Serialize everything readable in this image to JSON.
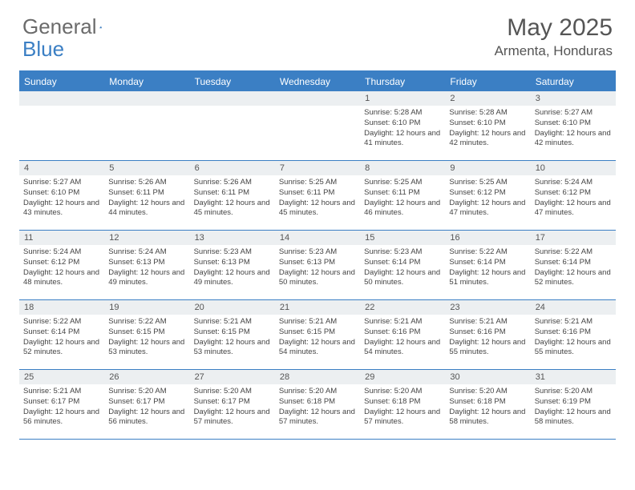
{
  "logo": {
    "text1": "General",
    "text2": "Blue"
  },
  "title": "May 2025",
  "location": "Armenta, Honduras",
  "colors": {
    "accent": "#3b7fc4",
    "header_bg": "#3b7fc4",
    "daynum_bg": "#eceff1",
    "text": "#444444",
    "title_text": "#555555"
  },
  "daysOfWeek": [
    "Sunday",
    "Monday",
    "Tuesday",
    "Wednesday",
    "Thursday",
    "Friday",
    "Saturday"
  ],
  "calendar": {
    "first_weekday_index": 4,
    "days": [
      {
        "n": 1,
        "sunrise": "5:28 AM",
        "sunset": "6:10 PM",
        "daylight": "12 hours and 41 minutes."
      },
      {
        "n": 2,
        "sunrise": "5:28 AM",
        "sunset": "6:10 PM",
        "daylight": "12 hours and 42 minutes."
      },
      {
        "n": 3,
        "sunrise": "5:27 AM",
        "sunset": "6:10 PM",
        "daylight": "12 hours and 42 minutes."
      },
      {
        "n": 4,
        "sunrise": "5:27 AM",
        "sunset": "6:10 PM",
        "daylight": "12 hours and 43 minutes."
      },
      {
        "n": 5,
        "sunrise": "5:26 AM",
        "sunset": "6:11 PM",
        "daylight": "12 hours and 44 minutes."
      },
      {
        "n": 6,
        "sunrise": "5:26 AM",
        "sunset": "6:11 PM",
        "daylight": "12 hours and 45 minutes."
      },
      {
        "n": 7,
        "sunrise": "5:25 AM",
        "sunset": "6:11 PM",
        "daylight": "12 hours and 45 minutes."
      },
      {
        "n": 8,
        "sunrise": "5:25 AM",
        "sunset": "6:11 PM",
        "daylight": "12 hours and 46 minutes."
      },
      {
        "n": 9,
        "sunrise": "5:25 AM",
        "sunset": "6:12 PM",
        "daylight": "12 hours and 47 minutes."
      },
      {
        "n": 10,
        "sunrise": "5:24 AM",
        "sunset": "6:12 PM",
        "daylight": "12 hours and 47 minutes."
      },
      {
        "n": 11,
        "sunrise": "5:24 AM",
        "sunset": "6:12 PM",
        "daylight": "12 hours and 48 minutes."
      },
      {
        "n": 12,
        "sunrise": "5:24 AM",
        "sunset": "6:13 PM",
        "daylight": "12 hours and 49 minutes."
      },
      {
        "n": 13,
        "sunrise": "5:23 AM",
        "sunset": "6:13 PM",
        "daylight": "12 hours and 49 minutes."
      },
      {
        "n": 14,
        "sunrise": "5:23 AM",
        "sunset": "6:13 PM",
        "daylight": "12 hours and 50 minutes."
      },
      {
        "n": 15,
        "sunrise": "5:23 AM",
        "sunset": "6:14 PM",
        "daylight": "12 hours and 50 minutes."
      },
      {
        "n": 16,
        "sunrise": "5:22 AM",
        "sunset": "6:14 PM",
        "daylight": "12 hours and 51 minutes."
      },
      {
        "n": 17,
        "sunrise": "5:22 AM",
        "sunset": "6:14 PM",
        "daylight": "12 hours and 52 minutes."
      },
      {
        "n": 18,
        "sunrise": "5:22 AM",
        "sunset": "6:14 PM",
        "daylight": "12 hours and 52 minutes."
      },
      {
        "n": 19,
        "sunrise": "5:22 AM",
        "sunset": "6:15 PM",
        "daylight": "12 hours and 53 minutes."
      },
      {
        "n": 20,
        "sunrise": "5:21 AM",
        "sunset": "6:15 PM",
        "daylight": "12 hours and 53 minutes."
      },
      {
        "n": 21,
        "sunrise": "5:21 AM",
        "sunset": "6:15 PM",
        "daylight": "12 hours and 54 minutes."
      },
      {
        "n": 22,
        "sunrise": "5:21 AM",
        "sunset": "6:16 PM",
        "daylight": "12 hours and 54 minutes."
      },
      {
        "n": 23,
        "sunrise": "5:21 AM",
        "sunset": "6:16 PM",
        "daylight": "12 hours and 55 minutes."
      },
      {
        "n": 24,
        "sunrise": "5:21 AM",
        "sunset": "6:16 PM",
        "daylight": "12 hours and 55 minutes."
      },
      {
        "n": 25,
        "sunrise": "5:21 AM",
        "sunset": "6:17 PM",
        "daylight": "12 hours and 56 minutes."
      },
      {
        "n": 26,
        "sunrise": "5:20 AM",
        "sunset": "6:17 PM",
        "daylight": "12 hours and 56 minutes."
      },
      {
        "n": 27,
        "sunrise": "5:20 AM",
        "sunset": "6:17 PM",
        "daylight": "12 hours and 57 minutes."
      },
      {
        "n": 28,
        "sunrise": "5:20 AM",
        "sunset": "6:18 PM",
        "daylight": "12 hours and 57 minutes."
      },
      {
        "n": 29,
        "sunrise": "5:20 AM",
        "sunset": "6:18 PM",
        "daylight": "12 hours and 57 minutes."
      },
      {
        "n": 30,
        "sunrise": "5:20 AM",
        "sunset": "6:18 PM",
        "daylight": "12 hours and 58 minutes."
      },
      {
        "n": 31,
        "sunrise": "5:20 AM",
        "sunset": "6:19 PM",
        "daylight": "12 hours and 58 minutes."
      }
    ]
  },
  "labels": {
    "sunrise": "Sunrise:",
    "sunset": "Sunset:",
    "daylight": "Daylight:"
  }
}
